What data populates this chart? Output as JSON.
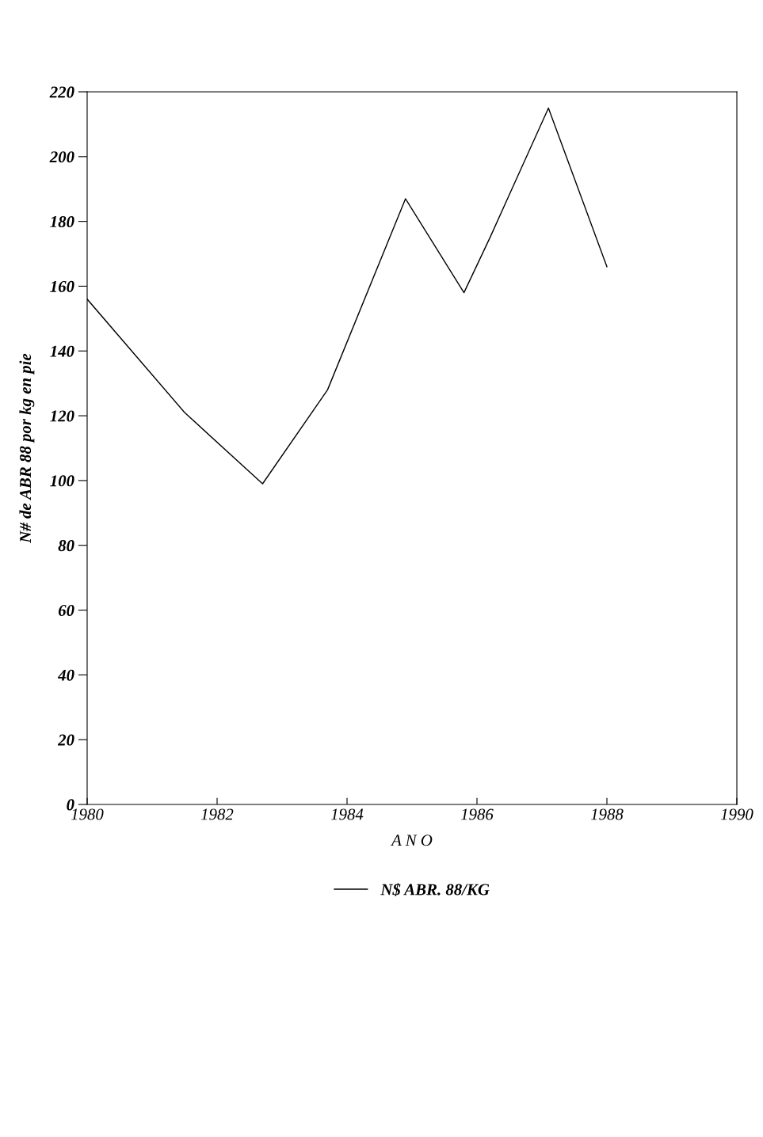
{
  "chart_data": {
    "type": "line",
    "xlabel": "A N O",
    "ylabel": "N# de ABR 88 por kg en pie",
    "x": [
      1980,
      1981.5,
      1982.7,
      1983.7,
      1984.9,
      1985.8,
      1986.2,
      1987.1,
      1988.0
    ],
    "series": [
      {
        "name": "N$ ABR. 88/KG",
        "color": "#000000",
        "values": [
          156,
          121,
          99,
          128,
          187,
          158,
          175,
          215,
          166
        ]
      }
    ],
    "xlim": [
      1980,
      1990
    ],
    "xticks": [
      1980,
      1982,
      1984,
      1986,
      1988,
      1990
    ],
    "ylim": [
      0,
      220
    ],
    "yticks": [
      0,
      20,
      40,
      60,
      80,
      100,
      120,
      140,
      160,
      180,
      200,
      220
    ],
    "grid": false,
    "legend": "bottom",
    "marker": "none",
    "line_style": "solid"
  }
}
